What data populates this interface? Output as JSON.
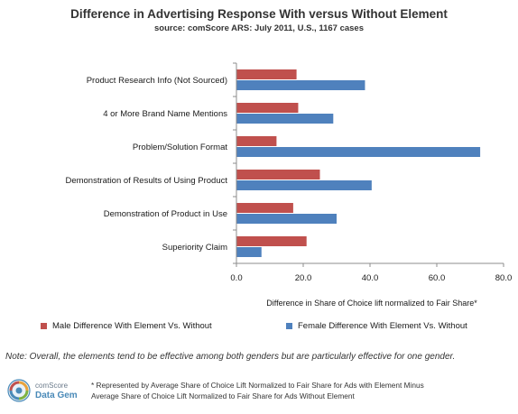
{
  "header": {
    "title": "Difference in Advertising Response With versus Without Element",
    "subtitle": "source: comScore ARS: July 2011, U.S., 1167 cases"
  },
  "colors": {
    "male": "#c0504d",
    "female": "#4f81bd"
  },
  "chart_data": {
    "type": "bar",
    "orientation": "horizontal",
    "categories": [
      "Product Research Info (Not Sourced)",
      "4 or More Brand Name Mentions",
      "Problem/Solution Format",
      "Demonstration of Results of Using Product",
      "Demonstration of Product  in Use",
      "Superiority Claim"
    ],
    "series": [
      {
        "name": "Male Difference With Element Vs. Without",
        "values": [
          18,
          18.5,
          12,
          25,
          17,
          21
        ]
      },
      {
        "name": "Female Difference With Element Vs. Without",
        "values": [
          38.5,
          29,
          73,
          40.5,
          30,
          7.5
        ]
      }
    ],
    "xlabel": "Difference in Share of Choice lift normalized to Fair Share*",
    "xlim": [
      0,
      80
    ],
    "xticks": [
      "0.0",
      "20.0",
      "40.0",
      "60.0",
      "80.0"
    ],
    "grid": false,
    "legend": "bottom"
  },
  "note": "Note: Overall, the elements tend to be effective among both genders but are particularly effective for one gender.",
  "logo": {
    "line1": "comScore",
    "line2": "Data Gem"
  },
  "footnote": {
    "line1": "* Represented by Average Share of Choice Lift Normalized to Fair Share for Ads with Element Minus",
    "line2": "Average Share of Choice Lift Normalized to Fair Share for Ads Without Element"
  }
}
